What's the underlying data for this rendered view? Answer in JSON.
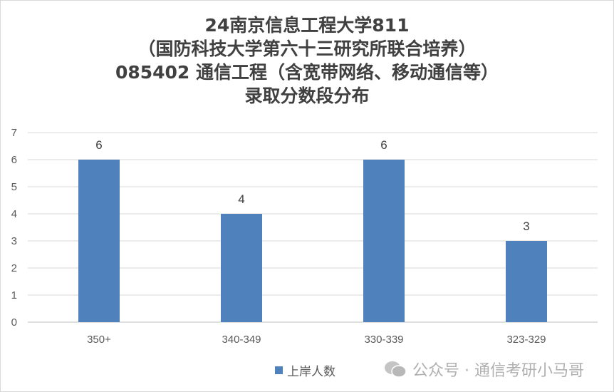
{
  "chart_data": {
    "type": "bar",
    "title_lines": [
      "24南京信息工程大学811",
      "（国防科技大学第六十三研究所联合培养）",
      "085402 通信工程（含宽带网络、移动通信等）",
      "录取分数段分布"
    ],
    "categories": [
      "350+",
      "340-349",
      "330-339",
      "323-329"
    ],
    "series": [
      {
        "name": "上岸人数",
        "values": [
          6,
          4,
          6,
          3
        ],
        "color": "#4f81bd"
      }
    ],
    "ylim": [
      0,
      7
    ],
    "yticks": [
      0,
      1,
      2,
      3,
      4,
      5,
      6,
      7
    ],
    "grid": true,
    "legend_position": "bottom",
    "data_labels": true
  },
  "watermark": {
    "text": "公众号 · 通信考研小马哥",
    "icon": "wechat-icon"
  }
}
